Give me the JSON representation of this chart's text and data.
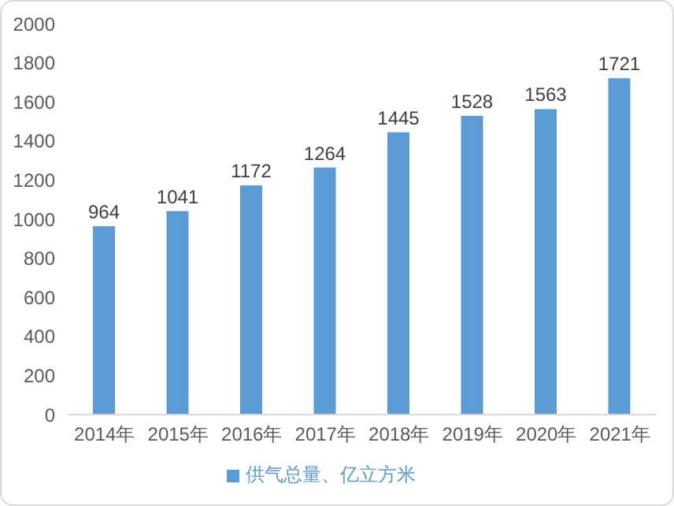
{
  "chart_data": {
    "type": "bar",
    "categories": [
      "2014年",
      "2015年",
      "2016年",
      "2017年",
      "2018年",
      "2019年",
      "2020年",
      "2021年"
    ],
    "series": [
      {
        "name": "供气总量、亿立方米",
        "color": "#5b9bd5",
        "values": [
          964,
          1041,
          1172,
          1264,
          1445,
          1528,
          1563,
          1721
        ]
      }
    ],
    "ylim": [
      0,
      2000
    ],
    "yticks": [
      0,
      200,
      400,
      600,
      800,
      1000,
      1200,
      1400,
      1600,
      1800,
      2000
    ],
    "grid": false,
    "legend": "bottom",
    "data_labels": true
  }
}
